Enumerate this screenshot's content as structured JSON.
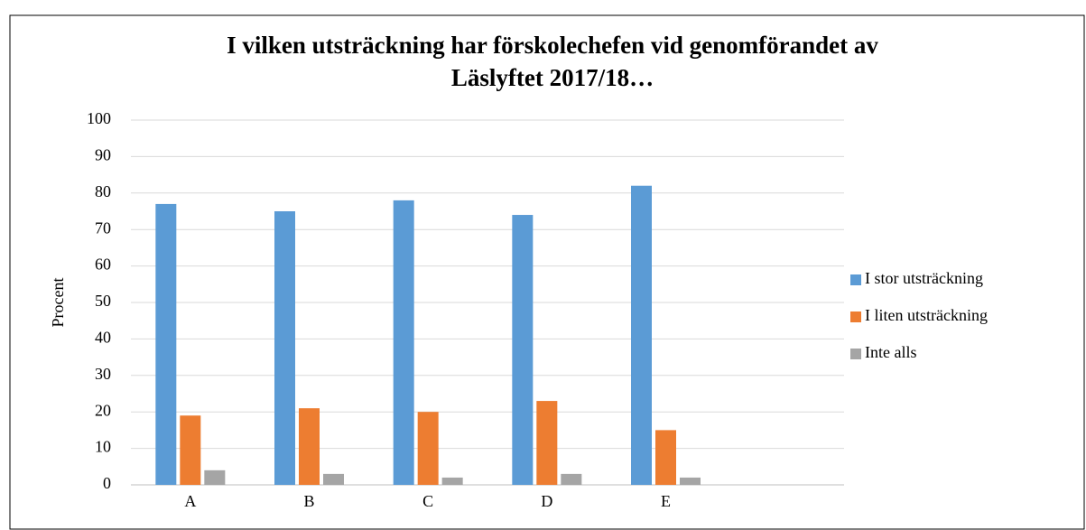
{
  "chart_data": {
    "type": "bar",
    "title": [
      "I vilken utsträckning har förskolechefen vid genomförandet av",
      "Läslyftet 2017/18…"
    ],
    "y_label": "Procent",
    "categories": [
      "A",
      "B",
      "C",
      "D",
      "E",
      null
    ],
    "series": [
      {
        "name": "I stor utsträckning",
        "color": "#5b9bd5",
        "values": [
          77,
          75,
          78,
          74,
          82,
          null
        ]
      },
      {
        "name": "I liten utsträckning",
        "color": "#ed7d31",
        "values": [
          19,
          21,
          20,
          23,
          15,
          null
        ]
      },
      {
        "name": "Inte alls",
        "color": "#a5a5a5",
        "values": [
          4,
          3,
          2,
          3,
          2,
          null
        ]
      }
    ],
    "ylim": [
      0,
      100
    ],
    "yticks": [
      0,
      10,
      20,
      30,
      40,
      50,
      60,
      70,
      80,
      90,
      100
    ],
    "grid": true,
    "legend": "right"
  }
}
